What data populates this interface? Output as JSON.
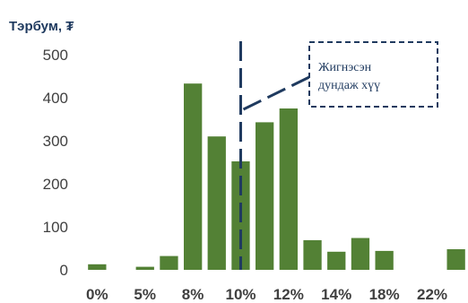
{
  "chart_data": {
    "type": "bar",
    "unit_label": "Тэрбум, ₮",
    "ylim": [
      0,
      500
    ],
    "yticks": [
      0,
      100,
      200,
      300,
      400,
      500
    ],
    "xtick_labels": [
      "0%",
      "5%",
      "8%",
      "10%",
      "12%",
      "14%",
      "18%",
      "22%"
    ],
    "values": [
      13,
      0,
      7,
      32,
      433,
      310,
      252,
      343,
      375,
      69,
      42,
      74,
      44,
      0,
      0,
      48
    ],
    "bar_color": "#538135",
    "annotation": {
      "line1": "Жигнэсэн",
      "line2": "дундаж хүү",
      "marker_bar_index": 6,
      "line_color": "#1f3a5f"
    }
  }
}
